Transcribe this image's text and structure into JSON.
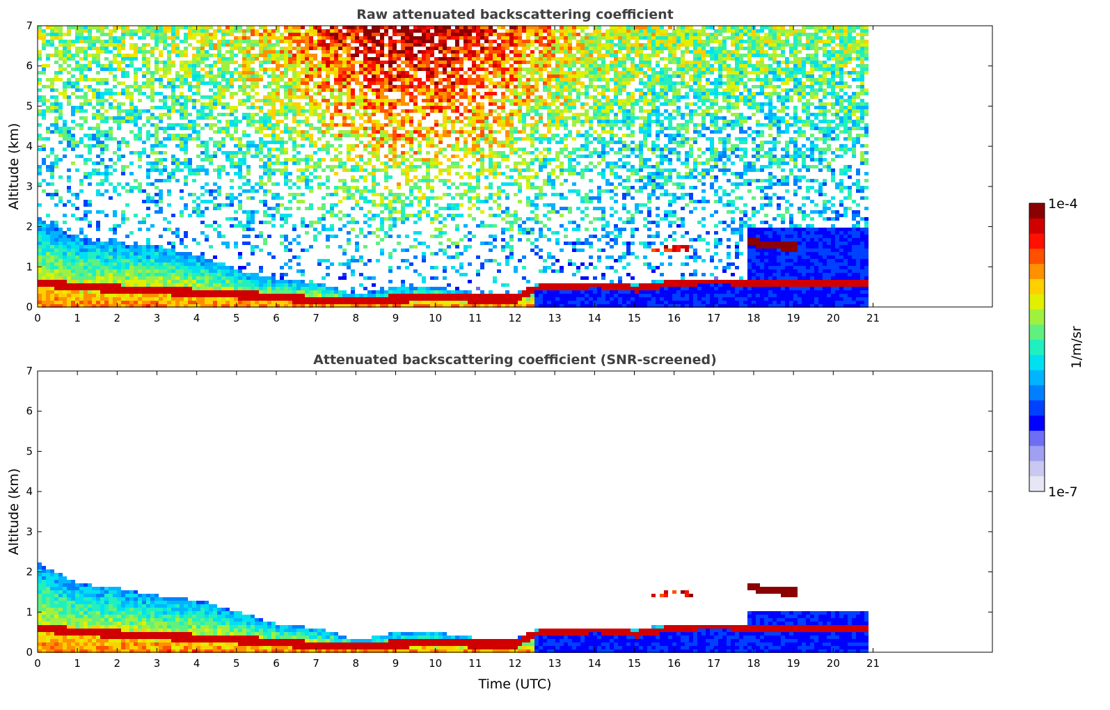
{
  "chart_data": [
    {
      "type": "heatmap",
      "title": "Raw attenuated backscattering coefficient",
      "xlabel": "",
      "ylabel": "Altitude (km)",
      "xlim": [
        0,
        24
      ],
      "ylim": [
        0,
        7
      ],
      "xticks": [
        0,
        1,
        2,
        3,
        4,
        5,
        6,
        7,
        8,
        9,
        10,
        11,
        12,
        13,
        14,
        15,
        16,
        17,
        18,
        19,
        20,
        21
      ],
      "yticks": [
        0,
        1,
        2,
        3,
        4,
        5,
        6,
        7
      ],
      "data_end_time": 20.8,
      "variant": "raw",
      "layers": [
        {
          "name": "boundary-layer",
          "time": [
            0,
            1,
            2,
            3,
            4,
            5,
            6,
            7,
            8,
            9,
            10,
            11,
            12,
            12.4,
            13,
            14,
            15,
            16,
            17,
            17.8
          ],
          "top_km": [
            2.2,
            1.7,
            1.6,
            1.5,
            1.3,
            0.9,
            0.7,
            0.6,
            0.3,
            0.5,
            0.5,
            0.35,
            0.35,
            0.55,
            0.6,
            0.6,
            0.6,
            0.7,
            0.7,
            0.7
          ]
        },
        {
          "name": "aerosol-peak-layer",
          "time": [
            0,
            1,
            2,
            3,
            4,
            5,
            6,
            7,
            8,
            9,
            10,
            11,
            12,
            12.4,
            13,
            14,
            15,
            16,
            17,
            17.8
          ],
          "height_km": [
            0.6,
            0.5,
            0.45,
            0.4,
            0.35,
            0.3,
            0.25,
            0.15,
            0.15,
            0.2,
            0.25,
            0.2,
            0.2,
            0.45,
            0.5,
            0.55,
            0.45,
            0.6,
            0.65,
            0.6
          ]
        },
        {
          "name": "elevated-aerosol-layer",
          "time": [
            17.8,
            18.2,
            18.6,
            19.0
          ],
          "height_km": [
            1.65,
            1.55,
            1.5,
            1.5
          ]
        },
        {
          "name": "thin-cloud",
          "time": [
            15.4,
            16.4
          ],
          "height_km": [
            1.45,
            1.45
          ]
        }
      ]
    },
    {
      "type": "heatmap",
      "title": "Attenuated backscattering coefficient (SNR-screened)",
      "xlabel": "Time (UTC)",
      "ylabel": "Altitude (km)",
      "xlim": [
        0,
        24
      ],
      "ylim": [
        0,
        7
      ],
      "xticks": [
        0,
        1,
        2,
        3,
        4,
        5,
        6,
        7,
        8,
        9,
        10,
        11,
        12,
        13,
        14,
        15,
        16,
        17,
        18,
        19,
        20,
        21
      ],
      "yticks": [
        0,
        1,
        2,
        3,
        4,
        5,
        6,
        7
      ],
      "data_end_time": 20.8,
      "variant": "screened",
      "layers": [
        {
          "name": "boundary-layer",
          "time": [
            0,
            1,
            2,
            3,
            4,
            5,
            6,
            7,
            8,
            9,
            10,
            11,
            12,
            12.4,
            13,
            14,
            15,
            16,
            17,
            17.8
          ],
          "top_km": [
            2.2,
            1.7,
            1.6,
            1.4,
            1.3,
            1.0,
            0.7,
            0.6,
            0.3,
            0.5,
            0.5,
            0.35,
            0.35,
            0.55,
            0.6,
            0.6,
            0.6,
            0.7,
            0.7,
            0.7
          ]
        },
        {
          "name": "aerosol-peak-layer",
          "time": [
            0,
            1,
            2,
            3,
            4,
            5,
            6,
            7,
            8,
            9,
            10,
            11,
            12,
            12.4,
            13,
            14,
            15,
            16,
            17,
            17.8
          ],
          "height_km": [
            0.6,
            0.5,
            0.45,
            0.4,
            0.35,
            0.3,
            0.25,
            0.15,
            0.15,
            0.2,
            0.25,
            0.2,
            0.2,
            0.45,
            0.5,
            0.55,
            0.45,
            0.6,
            0.65,
            0.6
          ]
        },
        {
          "name": "elevated-aerosol-layer",
          "time": [
            17.8,
            18.2,
            18.6,
            19.0
          ],
          "height_km": [
            1.65,
            1.55,
            1.5,
            1.5
          ]
        },
        {
          "name": "thin-cloud",
          "time": [
            15.4,
            16.4
          ],
          "height_km": [
            1.45,
            1.45
          ]
        }
      ]
    }
  ],
  "colorbar": {
    "label": "1/m/sr",
    "max_label": "1e-4",
    "min_label": "1e-7",
    "colors": [
      "#e6e6f5",
      "#c8c8f0",
      "#a0a0f0",
      "#6e6ef5",
      "#0000ff",
      "#0040ff",
      "#0080ff",
      "#00b4ff",
      "#00e0f0",
      "#20f0c0",
      "#60f080",
      "#a0f040",
      "#e0f000",
      "#ffd000",
      "#ff9000",
      "#ff5000",
      "#ff1000",
      "#d00000",
      "#8b0000"
    ]
  }
}
